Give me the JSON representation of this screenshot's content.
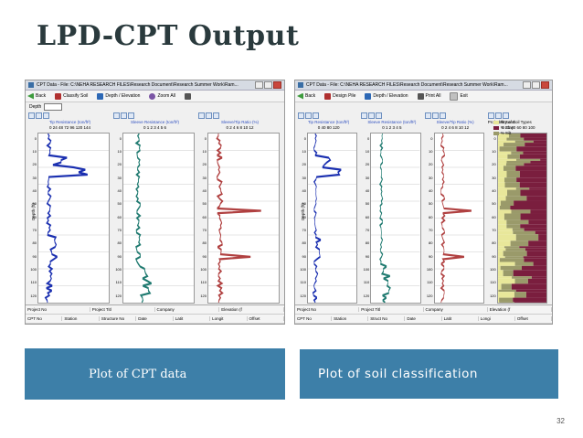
{
  "slide": {
    "title": "LPD-CPT Output",
    "page_number": "32"
  },
  "window1": {
    "title": "CPT Data - File: C:\\NEHA RESEARCH FILES\\Research Document\\Research Summer Work\\Ram...",
    "toolbar": {
      "back": "Back",
      "classify": "Classify Soil",
      "depth": "Depth / Elevation",
      "zoom": "Zoom All"
    },
    "depth_label": "Depth",
    "panels": [
      {
        "title": "Tip Resistance (ton/ft²)",
        "ticks": "0  24  48  72  96  120 144"
      },
      {
        "title": "Sleeve Resistance (ton/ft²)",
        "ticks": "0  1  2  3  4  5  6"
      },
      {
        "title": "Sleeve/Tip Ratio (%)",
        "ticks": "0  2  4  6  8  10  12"
      }
    ],
    "y_label": "Depth (ft)",
    "footer": {
      "row1": [
        "Project No",
        "Project Titl",
        "Company",
        "Elevation (f"
      ],
      "row2": [
        "CPT No",
        "Station",
        "Structure No",
        "Date",
        "Latit",
        "Longit",
        "Offset"
      ]
    }
  },
  "window2": {
    "title": "CPT Data - File: C:\\NEHA RESEARCH FILES\\Research Document\\Research Summer Work\\Ram...",
    "toolbar": {
      "back": "Back",
      "design": "Design Pile",
      "depth": "Depth / Elevation",
      "print": "Print All",
      "exit": "Exit"
    },
    "legend": {
      "sand": "% Sand",
      "clay": "% Clay",
      "silt": "% Silt"
    },
    "panels": [
      {
        "title": "Tip Resistance (ton/ft²)",
        "ticks": "0   40   80  120"
      },
      {
        "title": "Sleeve Resistance (ton/ft²)",
        "ticks": "0  1  2  3  4  5"
      },
      {
        "title": "Sleeve/Tip Ratio (%)",
        "ticks": "0  2  4  6  8  10  12"
      },
      {
        "title": "Probability of Soil Types",
        "ticks": "0  20  40  60  80  100"
      }
    ],
    "bottom_ticks": "0  20  40  60  80  100",
    "y_label": "Depth (ft)",
    "footer": {
      "row1": [
        "Project No",
        "Project Titl",
        "Company",
        "Elevation (f"
      ],
      "row2": [
        "CPT No",
        "Station",
        "Struct No",
        "Date",
        "Latit",
        "Longi",
        "Offset"
      ]
    }
  },
  "depth_ticks": [
    "0",
    "10",
    "20",
    "30",
    "40",
    "50",
    "60",
    "70",
    "80",
    "90",
    "100",
    "110",
    "120"
  ],
  "captions": {
    "left": "Plot of CPT data",
    "right": "Plot of soil classification"
  },
  "colors": {
    "tip": "#1a2fb0",
    "sleeve": "#1f7a70",
    "ratio": "#b04040",
    "sand": "#e8e79a",
    "clay": "#7a1e3e",
    "silt": "#9a9a6a",
    "caption_bg": "#3d7fa8"
  }
}
